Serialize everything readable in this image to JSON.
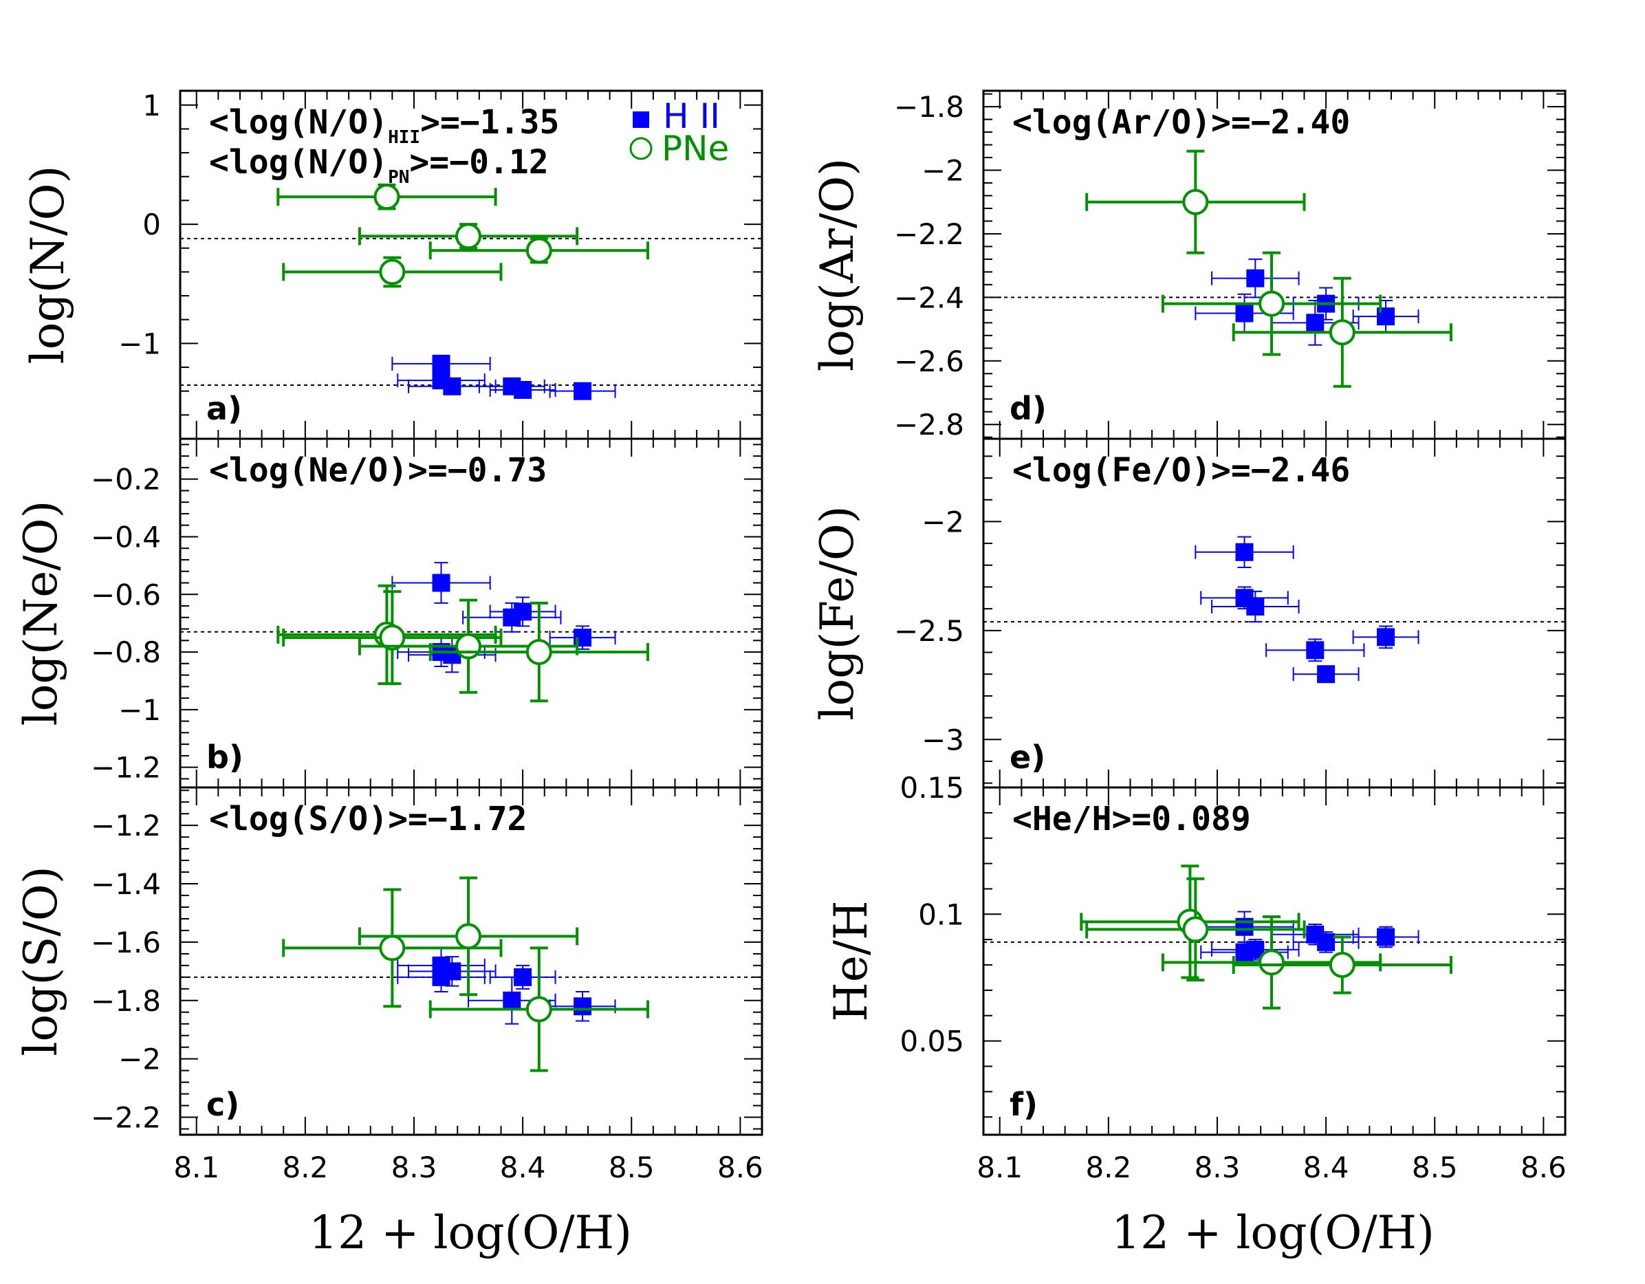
{
  "colors": {
    "hii": "#0000ff",
    "pn": "#009000",
    "axis": "#000000",
    "ref_line": "#000000"
  },
  "legend": {
    "hii_label": "H II",
    "pn_label": "PNe"
  },
  "x_axis": {
    "label": "12 + log(O/H)",
    "range": [
      8.085,
      8.62
    ],
    "ticks": [
      "8.1",
      "8.2",
      "8.3",
      "8.4",
      "8.5",
      "8.6"
    ]
  },
  "chart_data": [
    {
      "type": "scatter",
      "panel": "a)",
      "ylabel": "log(N/O)",
      "ylim": [
        -1.8,
        1.12
      ],
      "yticks": [
        "1",
        "0",
        "−1"
      ],
      "ytick_values": [
        1,
        0,
        -1
      ],
      "annotations": [
        {
          "text": "<log(N/O)HII>=−1.35",
          "main": "<log(N/O)",
          "sub": "HII",
          "tail": ">=−1.35"
        },
        {
          "text": "<log(N/O)PN>=−0.12",
          "main": "<log(N/O)",
          "sub": "PN",
          "tail": ">=−0.12"
        }
      ],
      "ref_lines": [
        -0.12,
        -1.35
      ],
      "series": [
        {
          "name": "H II",
          "marker": "filled-square",
          "points": [
            {
              "x": 8.325,
              "y": -1.17,
              "xerr": 0.045,
              "yerr": 0.05
            },
            {
              "x": 8.325,
              "y": -1.31,
              "xerr": 0.04,
              "yerr": 0.05
            },
            {
              "x": 8.335,
              "y": -1.36,
              "xerr": 0.04,
              "yerr": 0.05
            },
            {
              "x": 8.39,
              "y": -1.36,
              "xerr": 0.03,
              "yerr": 0.04
            },
            {
              "x": 8.4,
              "y": -1.39,
              "xerr": 0.03,
              "yerr": 0.04
            },
            {
              "x": 8.455,
              "y": -1.4,
              "xerr": 0.03,
              "yerr": 0.03
            }
          ]
        },
        {
          "name": "PNe",
          "marker": "open-circle",
          "points": [
            {
              "x": 8.275,
              "y": 0.23,
              "xerr": 0.1,
              "yerr": 0.1
            },
            {
              "x": 8.35,
              "y": -0.1,
              "xerr": 0.1,
              "yerr": 0.1
            },
            {
              "x": 8.415,
              "y": -0.22,
              "xerr": 0.1,
              "yerr": 0.1
            },
            {
              "x": 8.28,
              "y": -0.4,
              "xerr": 0.1,
              "yerr": 0.12
            }
          ]
        }
      ]
    },
    {
      "type": "scatter",
      "panel": "b)",
      "ylabel": "log(Ne/O)",
      "ylim": [
        -1.27,
        -0.06
      ],
      "yticks": [
        "−0.2",
        "−0.4",
        "−0.6",
        "−0.8",
        "−1",
        "−1.2"
      ],
      "ytick_values": [
        -0.2,
        -0.4,
        -0.6,
        -0.8,
        -1.0,
        -1.2
      ],
      "annotations": [
        {
          "text": "<log(Ne/O)>=−0.73"
        }
      ],
      "ref_lines": [
        -0.73
      ],
      "series": [
        {
          "name": "H II",
          "marker": "filled-square",
          "points": [
            {
              "x": 8.325,
              "y": -0.56,
              "xerr": 0.045,
              "yerr": 0.07
            },
            {
              "x": 8.39,
              "y": -0.68,
              "xerr": 0.045,
              "yerr": 0.05
            },
            {
              "x": 8.4,
              "y": -0.66,
              "xerr": 0.03,
              "yerr": 0.05
            },
            {
              "x": 8.455,
              "y": -0.75,
              "xerr": 0.03,
              "yerr": 0.04
            },
            {
              "x": 8.325,
              "y": -0.8,
              "xerr": 0.04,
              "yerr": 0.05
            },
            {
              "x": 8.335,
              "y": -0.81,
              "xerr": 0.04,
              "yerr": 0.06
            }
          ]
        },
        {
          "name": "PNe",
          "marker": "open-circle",
          "points": [
            {
              "x": 8.275,
              "y": -0.74,
              "xerr": 0.1,
              "yerr": 0.17
            },
            {
              "x": 8.28,
              "y": -0.75,
              "xerr": 0.1,
              "yerr": 0.16
            },
            {
              "x": 8.35,
              "y": -0.78,
              "xerr": 0.1,
              "yerr": 0.16
            },
            {
              "x": 8.415,
              "y": -0.8,
              "xerr": 0.1,
              "yerr": 0.17
            }
          ]
        }
      ]
    },
    {
      "type": "scatter",
      "panel": "c)",
      "ylabel": "log(S/O)",
      "ylim": [
        -2.26,
        -1.07
      ],
      "yticks": [
        "−1.2",
        "−1.4",
        "−1.6",
        "−1.8",
        "−2",
        "−2.2"
      ],
      "ytick_values": [
        -1.2,
        -1.4,
        -1.6,
        -1.8,
        -2.0,
        -2.2
      ],
      "annotations": [
        {
          "text": "<log(S/O)>=−1.72"
        }
      ],
      "ref_lines": [
        -1.72
      ],
      "series": [
        {
          "name": "H II",
          "marker": "filled-square",
          "points": [
            {
              "x": 8.325,
              "y": -1.68,
              "xerr": 0.04,
              "yerr": 0.06
            },
            {
              "x": 8.325,
              "y": -1.72,
              "xerr": 0.04,
              "yerr": 0.05
            },
            {
              "x": 8.335,
              "y": -1.7,
              "xerr": 0.04,
              "yerr": 0.05
            },
            {
              "x": 8.4,
              "y": -1.72,
              "xerr": 0.03,
              "yerr": 0.04
            },
            {
              "x": 8.39,
              "y": -1.8,
              "xerr": 0.04,
              "yerr": 0.08
            },
            {
              "x": 8.455,
              "y": -1.82,
              "xerr": 0.03,
              "yerr": 0.05
            }
          ]
        },
        {
          "name": "PNe",
          "marker": "open-circle",
          "points": [
            {
              "x": 8.28,
              "y": -1.62,
              "xerr": 0.1,
              "yerr": 0.2
            },
            {
              "x": 8.35,
              "y": -1.58,
              "xerr": 0.1,
              "yerr": 0.2
            },
            {
              "x": 8.415,
              "y": -1.83,
              "xerr": 0.1,
              "yerr": 0.21
            }
          ]
        }
      ]
    },
    {
      "type": "scatter",
      "panel": "d)",
      "ylabel": "log(Ar/O)",
      "ylim": [
        -2.845,
        -1.75
      ],
      "yticks": [
        "−1.8",
        "−2",
        "−2.2",
        "−2.4",
        "−2.6",
        "−2.8"
      ],
      "ytick_values": [
        -1.8,
        -2.0,
        -2.2,
        -2.4,
        -2.6,
        -2.8
      ],
      "annotations": [
        {
          "text": "<log(Ar/O)>=−2.40"
        }
      ],
      "ref_lines": [
        -2.4
      ],
      "series": [
        {
          "name": "H II",
          "marker": "filled-square",
          "points": [
            {
              "x": 8.335,
              "y": -2.34,
              "xerr": 0.04,
              "yerr": 0.06
            },
            {
              "x": 8.325,
              "y": -2.45,
              "xerr": 0.045,
              "yerr": 0.06
            },
            {
              "x": 8.4,
              "y": -2.42,
              "xerr": 0.03,
              "yerr": 0.05
            },
            {
              "x": 8.39,
              "y": -2.48,
              "xerr": 0.04,
              "yerr": 0.07
            },
            {
              "x": 8.455,
              "y": -2.46,
              "xerr": 0.03,
              "yerr": 0.05
            }
          ]
        },
        {
          "name": "PNe",
          "marker": "open-circle",
          "points": [
            {
              "x": 8.28,
              "y": -2.1,
              "xerr": 0.1,
              "yerr": 0.16
            },
            {
              "x": 8.35,
              "y": -2.42,
              "xerr": 0.1,
              "yerr": 0.16
            },
            {
              "x": 8.415,
              "y": -2.51,
              "xerr": 0.1,
              "yerr": 0.17
            }
          ]
        }
      ]
    },
    {
      "type": "scatter",
      "panel": "e)",
      "ylabel": "log(Fe/O)",
      "ylim": [
        -3.22,
        -1.62
      ],
      "yticks": [
        "−2",
        "−2.5",
        "−3"
      ],
      "ytick_values": [
        -2.0,
        -2.5,
        -3.0
      ],
      "annotations": [
        {
          "text": "<log(Fe/O)>=−2.46"
        }
      ],
      "ref_lines": [
        -2.46
      ],
      "series": [
        {
          "name": "H II",
          "marker": "filled-square",
          "points": [
            {
              "x": 8.325,
              "y": -2.14,
              "xerr": 0.045,
              "yerr": 0.07
            },
            {
              "x": 8.325,
              "y": -2.35,
              "xerr": 0.04,
              "yerr": 0.05
            },
            {
              "x": 8.335,
              "y": -2.39,
              "xerr": 0.04,
              "yerr": 0.07
            },
            {
              "x": 8.455,
              "y": -2.53,
              "xerr": 0.03,
              "yerr": 0.05
            },
            {
              "x": 8.39,
              "y": -2.59,
              "xerr": 0.045,
              "yerr": 0.05
            },
            {
              "x": 8.4,
              "y": -2.7,
              "xerr": 0.03,
              "yerr": 0.03
            }
          ]
        }
      ]
    },
    {
      "type": "scatter",
      "panel": "f)",
      "ylabel": "He/H",
      "ylim": [
        0.013,
        0.15
      ],
      "yticks": [
        "0.15",
        "0.1",
        "0.05"
      ],
      "ytick_values": [
        0.15,
        0.1,
        0.05
      ],
      "annotations": [
        {
          "text": "<He/H>=0.089"
        }
      ],
      "ref_lines": [
        0.089
      ],
      "series": [
        {
          "name": "H II",
          "marker": "filled-square",
          "points": [
            {
              "x": 8.325,
              "y": 0.095,
              "xerr": 0.045,
              "yerr": 0.006
            },
            {
              "x": 8.325,
              "y": 0.085,
              "xerr": 0.04,
              "yerr": 0.004
            },
            {
              "x": 8.335,
              "y": 0.086,
              "xerr": 0.04,
              "yerr": 0.004
            },
            {
              "x": 8.39,
              "y": 0.092,
              "xerr": 0.04,
              "yerr": 0.004
            },
            {
              "x": 8.4,
              "y": 0.089,
              "xerr": 0.03,
              "yerr": 0.004
            },
            {
              "x": 8.455,
              "y": 0.091,
              "xerr": 0.03,
              "yerr": 0.004
            }
          ]
        },
        {
          "name": "PNe",
          "marker": "open-circle",
          "points": [
            {
              "x": 8.275,
              "y": 0.097,
              "xerr": 0.1,
              "yerr": 0.022
            },
            {
              "x": 8.28,
              "y": 0.094,
              "xerr": 0.1,
              "yerr": 0.02
            },
            {
              "x": 8.35,
              "y": 0.081,
              "xerr": 0.1,
              "yerr": 0.018
            },
            {
              "x": 8.415,
              "y": 0.08,
              "xerr": 0.1,
              "yerr": 0.011
            }
          ]
        }
      ]
    }
  ]
}
